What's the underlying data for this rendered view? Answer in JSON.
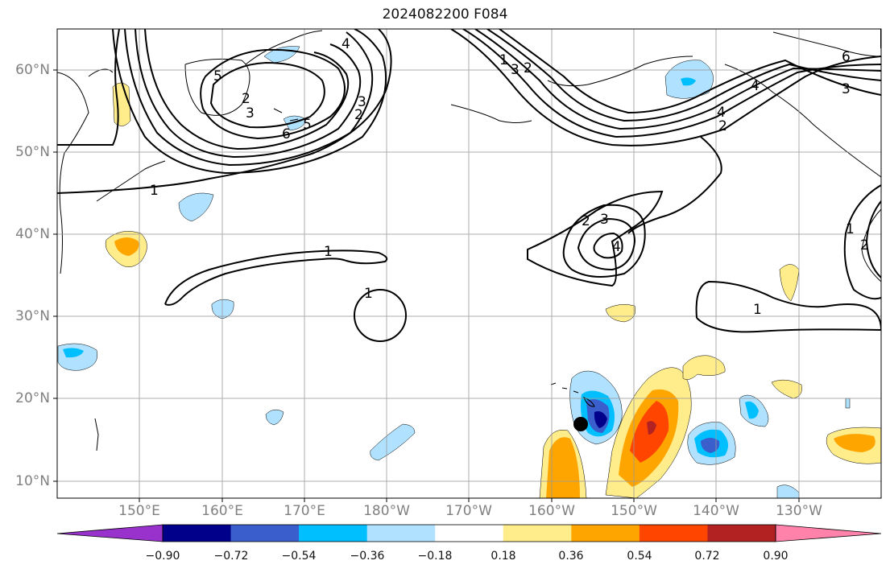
{
  "title": "2024082200 F084",
  "lat_labels": [
    "60°N",
    "50°N",
    "40°N",
    "30°N",
    "20°N",
    "10°N"
  ],
  "lon_labels": [
    "150°E",
    "160°E",
    "170°E",
    "180°W",
    "170°W",
    "160°W",
    "150°W",
    "140°W",
    "130°W"
  ],
  "contour_labels": [
    "1",
    "1",
    "1",
    "1",
    "1",
    "2",
    "2",
    "3",
    "3",
    "4",
    "2",
    "3",
    "4",
    "6",
    "5",
    "5",
    "4",
    "3",
    "2",
    "6",
    "3",
    "2",
    "4",
    "1",
    "2"
  ],
  "colorbar": {
    "ticks": [
      "−0.90",
      "−0.72",
      "−0.54",
      "−0.36",
      "−0.18",
      "0.18",
      "0.36",
      "0.54",
      "0.72",
      "0.90"
    ],
    "colors": [
      "#9932CC",
      "#00008B",
      "#3A5FCD",
      "#00BFFF",
      "#B0E2FF",
      "#FFFFFF",
      "#FFEC8B",
      "#FFA500",
      "#FF4500",
      "#B22222",
      "#FF82AB"
    ]
  },
  "marker_icon": "storm-position-dot"
}
